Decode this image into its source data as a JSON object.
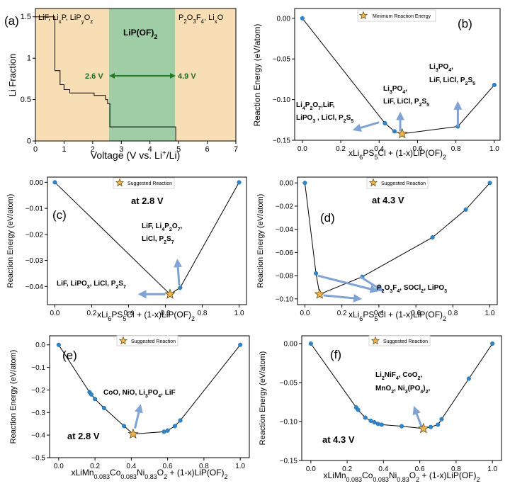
{
  "figure": {
    "colors": {
      "axis": "#000000",
      "line": "#000000",
      "point": "#2f86c9",
      "point_edge": "#1b5f96",
      "star": "#f2b34a",
      "star_edge": "#5a4a1a",
      "arrow": "#7ea3d4",
      "band_left": "#f8deb5",
      "band_mid": "#9fcda6",
      "band_right": "#f8deb5",
      "band_mid_text": "#1e6b2a",
      "voltage_arrow": "#1e7a24"
    }
  },
  "chart_data": [
    {
      "panel": "(a)",
      "type": "line",
      "xlabel": "Voltage (V vs. Li⁺/Li)",
      "ylabel": "Li Fraction",
      "xlim": [
        0,
        7
      ],
      "ylim": [
        0,
        1.6
      ],
      "xticks": [
        "0",
        "1",
        "2",
        "3",
        "4",
        "5",
        "6",
        "7"
      ],
      "yticks": [
        "0",
        "0.5",
        "1",
        "1.5"
      ],
      "regions": [
        {
          "label": "LiF, LixP, LiPyOz",
          "x_range": [
            0,
            2.6
          ]
        },
        {
          "label": "LiP(OF)2",
          "x_range": [
            2.6,
            4.9
          ]
        },
        {
          "label": "P2O3F4, LixO",
          "x_range": [
            4.9,
            7
          ]
        }
      ],
      "voltage_markers": [
        {
          "label": "2.6 V",
          "x": 2.6
        },
        {
          "label": "4.9 V",
          "x": 4.9
        }
      ],
      "series": [
        {
          "name": "Li fraction",
          "x": [
            0,
            0.68,
            0.68,
            0.86,
            0.86,
            1.0,
            1.0,
            1.2,
            1.2,
            2.05,
            2.05,
            2.45,
            2.45,
            2.52,
            2.52,
            2.6,
            2.6,
            4.9,
            4.9,
            7.0
          ],
          "y": [
            1.5,
            1.5,
            0.85,
            0.85,
            0.68,
            0.68,
            0.62,
            0.62,
            0.58,
            0.58,
            0.55,
            0.55,
            0.5,
            0.5,
            0.45,
            0.45,
            0.17,
            0.17,
            0.0,
            0.0
          ]
        }
      ]
    },
    {
      "panel": "(b)",
      "type": "line",
      "xlabel": "xLi6PS5Cl + (1-x)LiP(OF)2",
      "ylabel": "Reaction Energy (eV/atom)",
      "xlim": [
        -0.04,
        1.03
      ],
      "ylim": [
        -0.15,
        0.012
      ],
      "xticks": [
        "0.0",
        "0.2",
        "0.4",
        "0.6",
        "0.8",
        "1.0"
      ],
      "yticks": [
        "0.00",
        "−0.05",
        "−0.10",
        "−0.15"
      ],
      "legend": "Minimum Reaction Energy",
      "legend_position": "top-center",
      "series": [
        {
          "name": "hull",
          "x": [
            0.0,
            0.43,
            0.48,
            0.52,
            0.81,
            1.0
          ],
          "y": [
            0.0,
            -0.129,
            -0.139,
            -0.142,
            -0.133,
            -0.082
          ]
        }
      ],
      "star": {
        "x": 0.52,
        "y": -0.142
      },
      "annotations": [
        {
          "lines": [
            "Li4P2O7,LiF,",
            "LiPO3 , LiCl, P2S5"
          ],
          "arrow_from": [
            0.4,
            -0.128
          ],
          "arrow_to": [
            0.27,
            -0.137
          ]
        },
        {
          "lines": [
            "Li3PO4,",
            "LiF, LiCl, P2S5"
          ],
          "arrow_from": [
            0.51,
            -0.139
          ],
          "arrow_to": [
            0.51,
            -0.117
          ]
        },
        {
          "lines": [
            "Li3PO4,",
            "LiF, LiCl, P2S5"
          ],
          "arrow_from": [
            0.81,
            -0.133
          ],
          "arrow_to": [
            0.81,
            -0.104
          ]
        }
      ]
    },
    {
      "panel": "(c)",
      "type": "line",
      "xlabel": "xLi6PS5Cl + (1-x)LiP(OF)2",
      "ylabel": "Reaction Energy (eV/atom)",
      "xlim": [
        -0.04,
        1.04
      ],
      "ylim": [
        -0.047,
        0.002
      ],
      "xticks": [
        "0.0",
        "0.2",
        "0.4",
        "0.6",
        "0.8",
        "1.0"
      ],
      "yticks": [
        "0.00",
        "−0.01",
        "−0.02",
        "−0.03",
        "−0.04"
      ],
      "legend": "Suggested Reaction",
      "legend_position": "top-center",
      "voltage": "at 2.8 V",
      "series": [
        {
          "name": "hull",
          "x": [
            0.0,
            0.625,
            0.68,
            1.0
          ],
          "y": [
            0.0,
            -0.043,
            -0.0405,
            0.0
          ]
        }
      ],
      "star": {
        "x": 0.625,
        "y": -0.043
      },
      "annotations": [
        {
          "lines": [
            "LiF, LiPO3, LiCl, P2S7"
          ],
          "arrow_from": [
            0.6,
            -0.043
          ],
          "arrow_to": [
            0.46,
            -0.043
          ]
        },
        {
          "lines": [
            "LiF, Li4P2O7,",
            "LiCl, P2S7"
          ],
          "arrow_from": [
            0.675,
            -0.0395
          ],
          "arrow_to": [
            0.665,
            -0.03
          ]
        }
      ]
    },
    {
      "panel": "(d)",
      "type": "line",
      "xlabel": "xLi6PS5Cl + (1-x)LiP(OF)2",
      "ylabel": "Reaction Energy (eV/atom)",
      "xlim": [
        -0.04,
        1.04
      ],
      "ylim": [
        -0.105,
        0.005
      ],
      "xticks": [
        "0.0",
        "0.2",
        "0.4",
        "0.6",
        "0.8",
        "1.0"
      ],
      "yticks": [
        "0.00",
        "−0.02",
        "−0.04",
        "−0.06",
        "−0.08",
        "−0.10"
      ],
      "legend": "Suggested Reaction",
      "legend_position": "top-center",
      "voltage": "at 4.3 V",
      "series": [
        {
          "name": "hull",
          "x": [
            0.0,
            0.06,
            0.08,
            0.31,
            0.69,
            0.87,
            1.0
          ],
          "y": [
            0.0,
            -0.078,
            -0.096,
            -0.081,
            -0.047,
            -0.023,
            0.0
          ]
        }
      ],
      "star": {
        "x": 0.08,
        "y": -0.096
      },
      "annotations": [
        {
          "lines": [
            "P2O3F4, SOCl2, LiPO3"
          ],
          "arrow_from": [
            0.07,
            -0.08
          ],
          "arrow_to": [
            0.39,
            -0.093
          ]
        },
        {
          "lines": [],
          "arrow_from": [
            0.3,
            -0.081
          ],
          "arrow_to": [
            0.42,
            -0.093
          ]
        },
        {
          "lines": [],
          "arrow_from": [
            0.1,
            -0.097
          ],
          "arrow_to": [
            0.3,
            -0.1
          ]
        }
      ]
    },
    {
      "panel": "(e)",
      "type": "line",
      "xlabel": "xLiMn0.083Co0.083Ni0.83O2 + (1-x)LiP(OF)2",
      "ylabel": "Reaction Energy (eV/atom)",
      "xlim": [
        -0.05,
        1.05
      ],
      "ylim": [
        -0.5,
        0.04
      ],
      "xticks": [
        "0.0",
        "0.2",
        "0.4",
        "0.6",
        "0.8",
        "1.0"
      ],
      "yticks": [
        "0.0",
        "−0.1",
        "−0.2",
        "−0.3",
        "−0.4",
        "−0.5"
      ],
      "legend": "Suggested Reaction",
      "legend_position": "top-center",
      "voltage": "at 2.8 V",
      "series": [
        {
          "name": "hull",
          "x": [
            0.0,
            0.17,
            0.18,
            0.2,
            0.25,
            0.36,
            0.41,
            0.58,
            0.6,
            0.64,
            0.67,
            1.0
          ],
          "y": [
            0.0,
            -0.21,
            -0.22,
            -0.24,
            -0.28,
            -0.36,
            -0.395,
            -0.385,
            -0.38,
            -0.36,
            -0.335,
            0.0
          ]
        }
      ],
      "star": {
        "x": 0.41,
        "y": -0.395
      },
      "annotations": [
        {
          "lines": [
            "CoO, NiO, Li3PO4, LiF"
          ],
          "arrow_from": [
            0.42,
            -0.37
          ],
          "arrow_to": [
            0.45,
            -0.27
          ]
        }
      ]
    },
    {
      "panel": "(f)",
      "type": "line",
      "xlabel": "xLiMn0.083Co0.083Ni0.83O2 + (1-x)LiP(OF)2",
      "ylabel": "Reaction Energy (eV/atom)",
      "xlim": [
        -0.05,
        1.05
      ],
      "ylim": [
        -0.15,
        0.01
      ],
      "xticks": [
        "0.0",
        "0.2",
        "0.4",
        "0.6",
        "0.8",
        "1.0"
      ],
      "yticks": [
        "0.00",
        "−0.05",
        "−0.10",
        "−0.15"
      ],
      "legend": "Suggested Reaction",
      "legend_position": "top-center",
      "voltage": "at 4.3 V",
      "series": [
        {
          "name": "hull",
          "x": [
            0.0,
            0.25,
            0.26,
            0.3,
            0.33,
            0.35,
            0.37,
            0.39,
            0.5,
            0.62,
            0.66,
            0.7,
            0.72,
            0.87,
            1.0
          ],
          "y": [
            0.0,
            -0.082,
            -0.085,
            -0.095,
            -0.099,
            -0.101,
            -0.103,
            -0.104,
            -0.106,
            -0.109,
            -0.107,
            -0.104,
            -0.097,
            -0.045,
            0.0
          ]
        }
      ],
      "star": {
        "x": 0.62,
        "y": -0.109
      },
      "annotations": [
        {
          "lines": [
            "Li2NiF4, CoO2,",
            "MnO2, Ni3(PO4)2,"
          ],
          "arrow_from": [
            0.61,
            -0.107
          ],
          "arrow_to": [
            0.57,
            -0.082
          ]
        }
      ]
    }
  ]
}
